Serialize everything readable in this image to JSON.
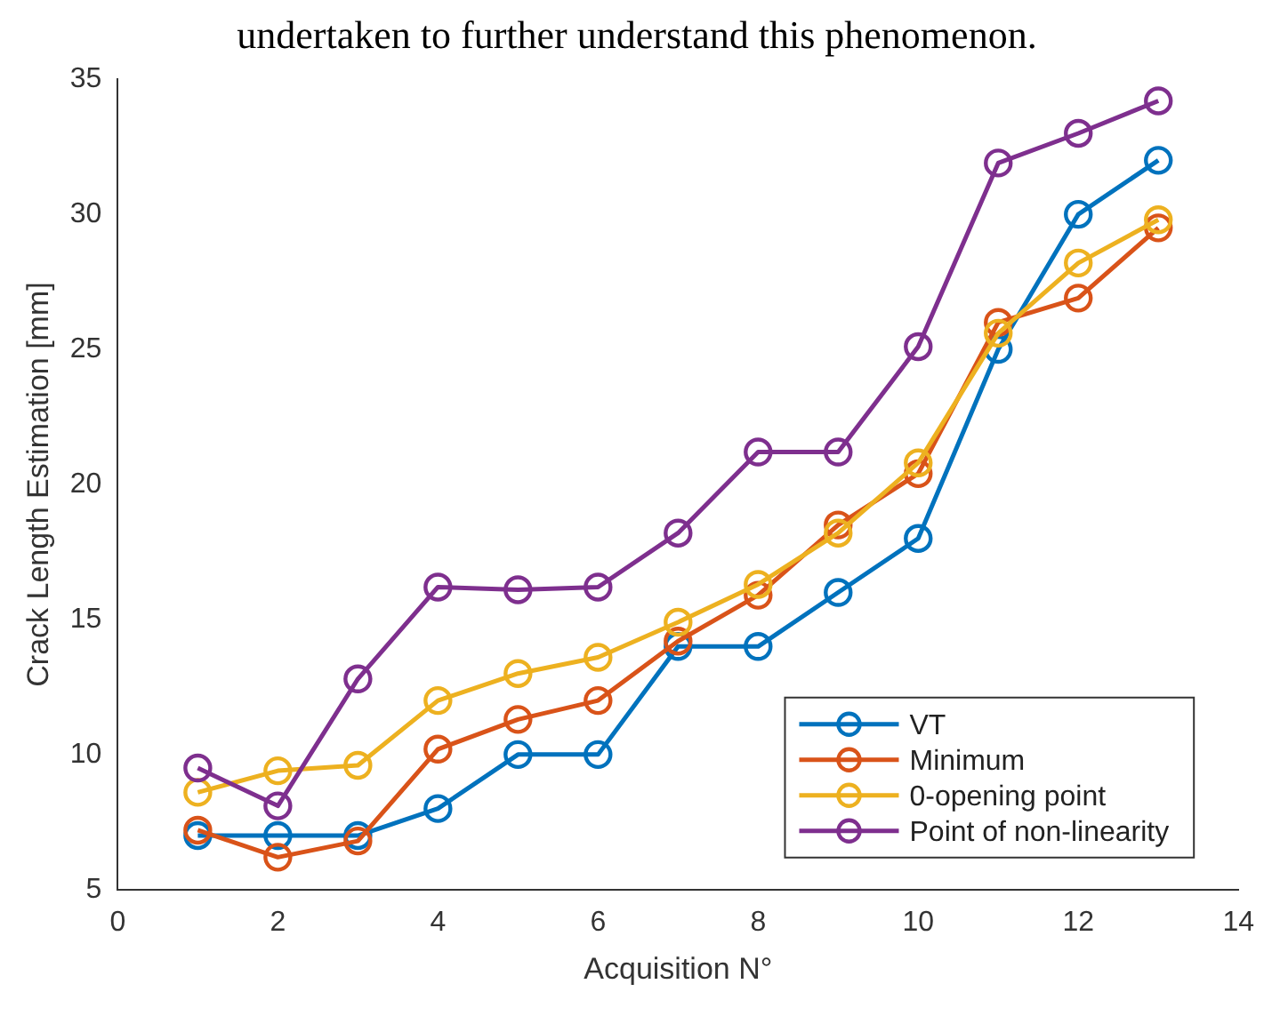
{
  "chart_data": {
    "type": "line",
    "xlabel": "Acquisition N°",
    "ylabel": "Crack Length Estimation [mm]",
    "annotations": [
      "undertaken to further understand this phenomenon."
    ],
    "x": [
      1,
      2,
      3,
      4,
      5,
      6,
      7,
      8,
      9,
      10,
      11,
      12,
      13
    ],
    "series": [
      {
        "name": "VT",
        "color": "#0072bd",
        "values": [
          7,
          7,
          7,
          8,
          10,
          10,
          14,
          14,
          16,
          18,
          25,
          30,
          32
        ]
      },
      {
        "name": "Minimum",
        "color": "#d95319",
        "values": [
          7.2,
          6.2,
          6.8,
          10.2,
          11.3,
          12,
          14.2,
          15.9,
          18.5,
          20.4,
          26,
          26.9,
          29.5
        ]
      },
      {
        "name": "0-opening point",
        "color": "#edb120",
        "values": [
          8.6,
          9.4,
          9.6,
          12,
          13,
          13.6,
          14.9,
          16.3,
          18.2,
          20.8,
          25.6,
          28.2,
          29.8
        ]
      },
      {
        "name": "Point of non-linearity",
        "color": "#7e2f8e",
        "values": [
          9.5,
          8.1,
          12.8,
          16.2,
          16.1,
          16.2,
          18.2,
          21.2,
          21.2,
          25.1,
          31.9,
          33,
          34.2
        ]
      }
    ],
    "xlim": [
      0,
      14
    ],
    "xticks": [
      0,
      2,
      4,
      6,
      8,
      10,
      12,
      14
    ],
    "ylim": [
      5,
      35
    ],
    "yticks": [
      5,
      10,
      15,
      20,
      25,
      30,
      35
    ],
    "grid": false,
    "legend": "bottom right",
    "marker": "circle",
    "line_style": "solid"
  }
}
